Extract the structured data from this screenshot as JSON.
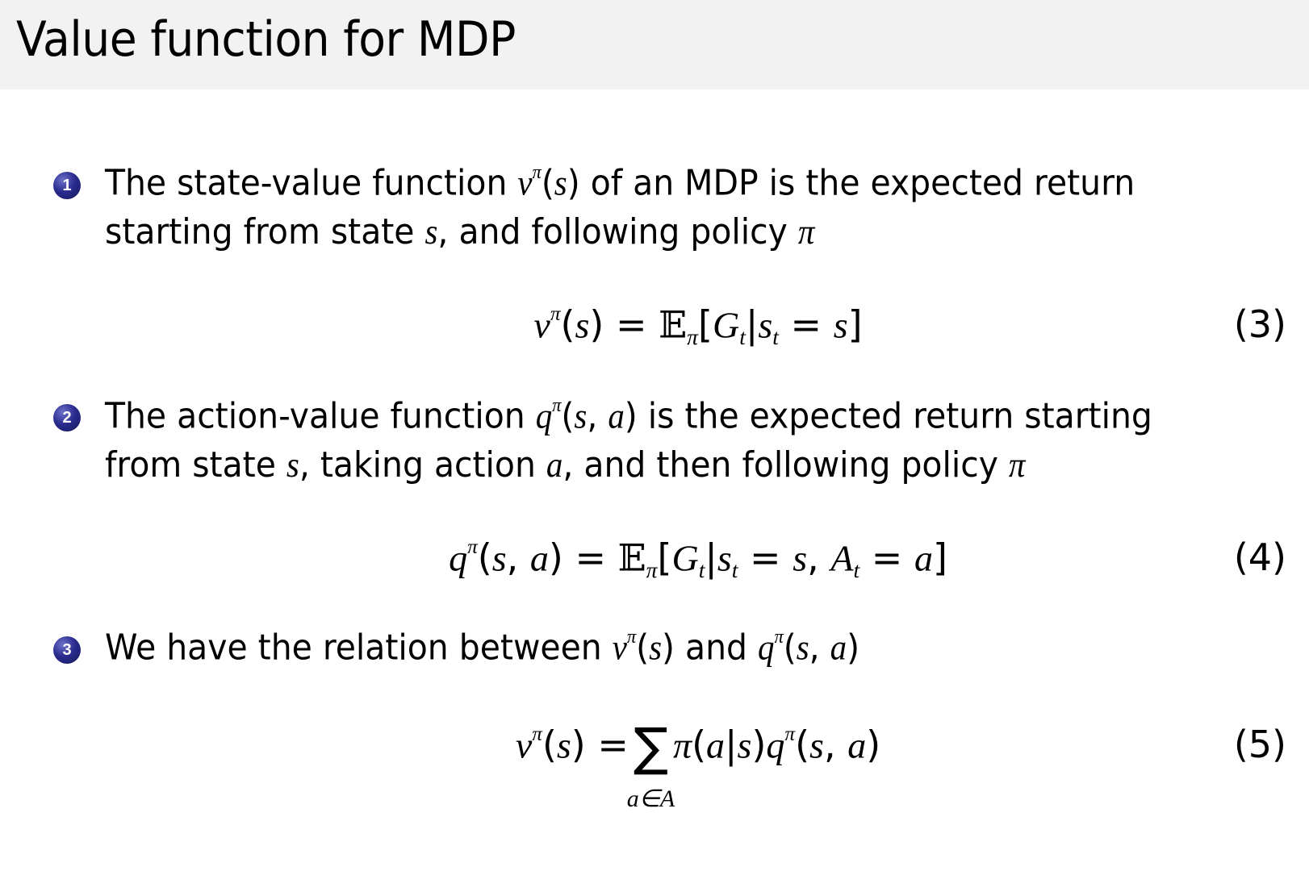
{
  "title": "Value function for MDP",
  "items": [
    {
      "number": "1",
      "lines": [
        [
          {
            "t": "The state-value function "
          },
          {
            "m": "v"
          },
          {
            "sup": "π"
          },
          {
            "t": "("
          },
          {
            "m": "s"
          },
          {
            "t": ") of an MDP is the expected return"
          }
        ],
        [
          {
            "t": "starting from state "
          },
          {
            "m": "s"
          },
          {
            "t": ", and following policy "
          },
          {
            "m": "π"
          }
        ]
      ]
    },
    {
      "number": "2",
      "lines": [
        [
          {
            "t": "The action-value function "
          },
          {
            "m": "q"
          },
          {
            "sup": "π"
          },
          {
            "t": "("
          },
          {
            "m": "s"
          },
          {
            "t": ", "
          },
          {
            "m": "a"
          },
          {
            "t": ") is the expected return starting"
          }
        ],
        [
          {
            "t": "from state "
          },
          {
            "m": "s"
          },
          {
            "t": ", taking action "
          },
          {
            "m": "a"
          },
          {
            "t": ", and then following policy "
          },
          {
            "m": "π"
          }
        ]
      ]
    },
    {
      "number": "3",
      "lines": [
        [
          {
            "t": "We have the relation between "
          },
          {
            "m": "v"
          },
          {
            "sup": "π"
          },
          {
            "t": "("
          },
          {
            "m": "s"
          },
          {
            "t": ") and "
          },
          {
            "m": "q"
          },
          {
            "sup": "π"
          },
          {
            "t": "("
          },
          {
            "m": "s"
          },
          {
            "t": ", "
          },
          {
            "m": "a"
          },
          {
            "t": ")"
          }
        ]
      ]
    }
  ],
  "equations": [
    {
      "number": "(3)",
      "parts": [
        {
          "m": "v"
        },
        {
          "sup": "π"
        },
        {
          "t": "("
        },
        {
          "m": "s"
        },
        {
          "t": ") = "
        },
        {
          "bb": "𝔼"
        },
        {
          "sub": "π"
        },
        {
          "t": "["
        },
        {
          "m": "G"
        },
        {
          "sub": "t"
        },
        {
          "t": "|"
        },
        {
          "m": "s"
        },
        {
          "sub": "t"
        },
        {
          "t": " = "
        },
        {
          "m": "s"
        },
        {
          "t": "]"
        }
      ]
    },
    {
      "number": "(4)",
      "parts": [
        {
          "m": "q"
        },
        {
          "sup": "π"
        },
        {
          "t": "("
        },
        {
          "m": "s"
        },
        {
          "t": ", "
        },
        {
          "m": "a"
        },
        {
          "t": ") = "
        },
        {
          "bb": "𝔼"
        },
        {
          "sub": "π"
        },
        {
          "t": "["
        },
        {
          "m": "G"
        },
        {
          "sub": "t"
        },
        {
          "t": "|"
        },
        {
          "m": "s"
        },
        {
          "sub": "t"
        },
        {
          "t": " = "
        },
        {
          "m": "s"
        },
        {
          "t": ", "
        },
        {
          "m": "A"
        },
        {
          "sub": "t"
        },
        {
          "t": " = "
        },
        {
          "m": "a"
        },
        {
          "t": "]"
        }
      ]
    },
    {
      "number": "(5)",
      "parts": [
        {
          "m": "v"
        },
        {
          "sup": "π"
        },
        {
          "t": "("
        },
        {
          "m": "s"
        },
        {
          "t": ") ="
        },
        {
          "sum": "∑",
          "under": "a∈A"
        },
        {
          "m": "π"
        },
        {
          "t": "("
        },
        {
          "m": "a"
        },
        {
          "t": "|"
        },
        {
          "m": "s"
        },
        {
          "t": ")"
        },
        {
          "m": "q"
        },
        {
          "sup": "π"
        },
        {
          "t": "("
        },
        {
          "m": "s"
        },
        {
          "t": ", "
        },
        {
          "m": "a"
        },
        {
          "t": ")"
        }
      ]
    }
  ],
  "colors": {
    "header_bg": "#f2f2f2",
    "bullet": "#2a2d8f"
  }
}
